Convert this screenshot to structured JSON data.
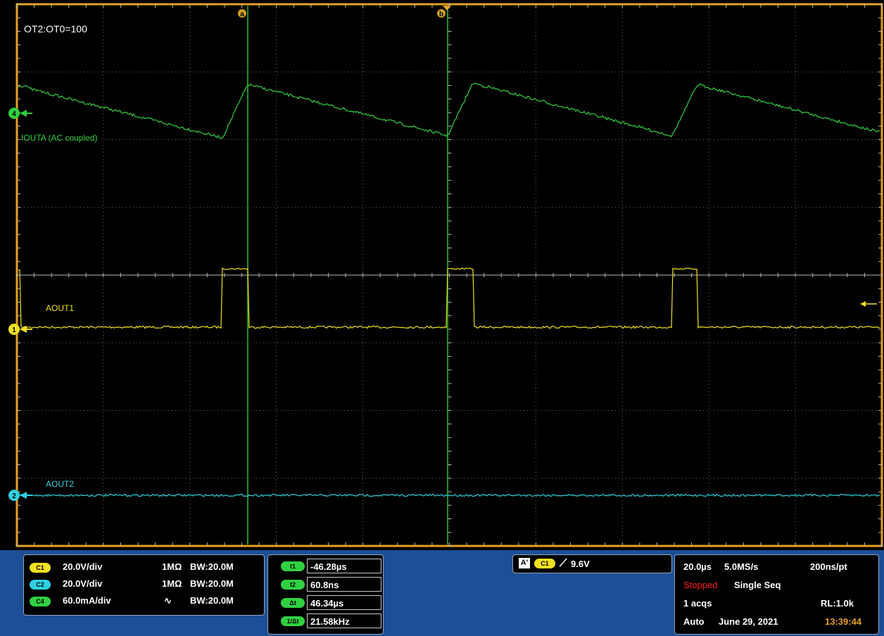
{
  "graticule": {
    "annotation": "OT2:OT0=100",
    "cursor_a_label": "a",
    "cursor_b_label": "b",
    "colors": {
      "ch1": "#f0e020",
      "ch2": "#30d0e0",
      "ch4": "#30d040",
      "grid": "#555555",
      "frame": "#e6a020"
    }
  },
  "channels": {
    "ch4": {
      "marker": "4",
      "label": "IOUTA (AC coupled)"
    },
    "ch1": {
      "marker": "1",
      "label": "AOUT1"
    },
    "ch2": {
      "marker": "2",
      "label": "AOUT2"
    }
  },
  "vertical": [
    {
      "pill": "C1",
      "scale": "20.0V/div",
      "coupling": "1MΩ",
      "bw": "BW:20.0M",
      "color": "#f0e020"
    },
    {
      "pill": "C2",
      "scale": "20.0V/div",
      "coupling": "1MΩ",
      "bw": "BW:20.0M",
      "color": "#30d0e0"
    },
    {
      "pill": "C4",
      "scale": "60.0mA/div",
      "coupling": "∿",
      "bw": "BW:20.0M",
      "color": "#30d040"
    }
  ],
  "cursors": [
    {
      "pill": "t1",
      "value": "-46.28µs"
    },
    {
      "pill": "t2",
      "value": "60.8ns"
    },
    {
      "pill": "Δt",
      "value": "46.34µs"
    },
    {
      "pill": "1/Δt",
      "value": "21.58kHz"
    }
  ],
  "trigger": {
    "mode_badge": "A'",
    "source": "C1",
    "slope": "⟋",
    "level": "9.6V"
  },
  "acquisition": {
    "timebase": "20.0µs",
    "sample_rate": "5.0MS/s",
    "resolution": "200ns/pt",
    "state": "Stopped",
    "mode": "Single Seq",
    "acqs": "1 acqs",
    "record_length": "RL:1.0k",
    "trigger_mode": "Auto",
    "date": "June 29, 2021",
    "time": "13:39:44"
  }
}
